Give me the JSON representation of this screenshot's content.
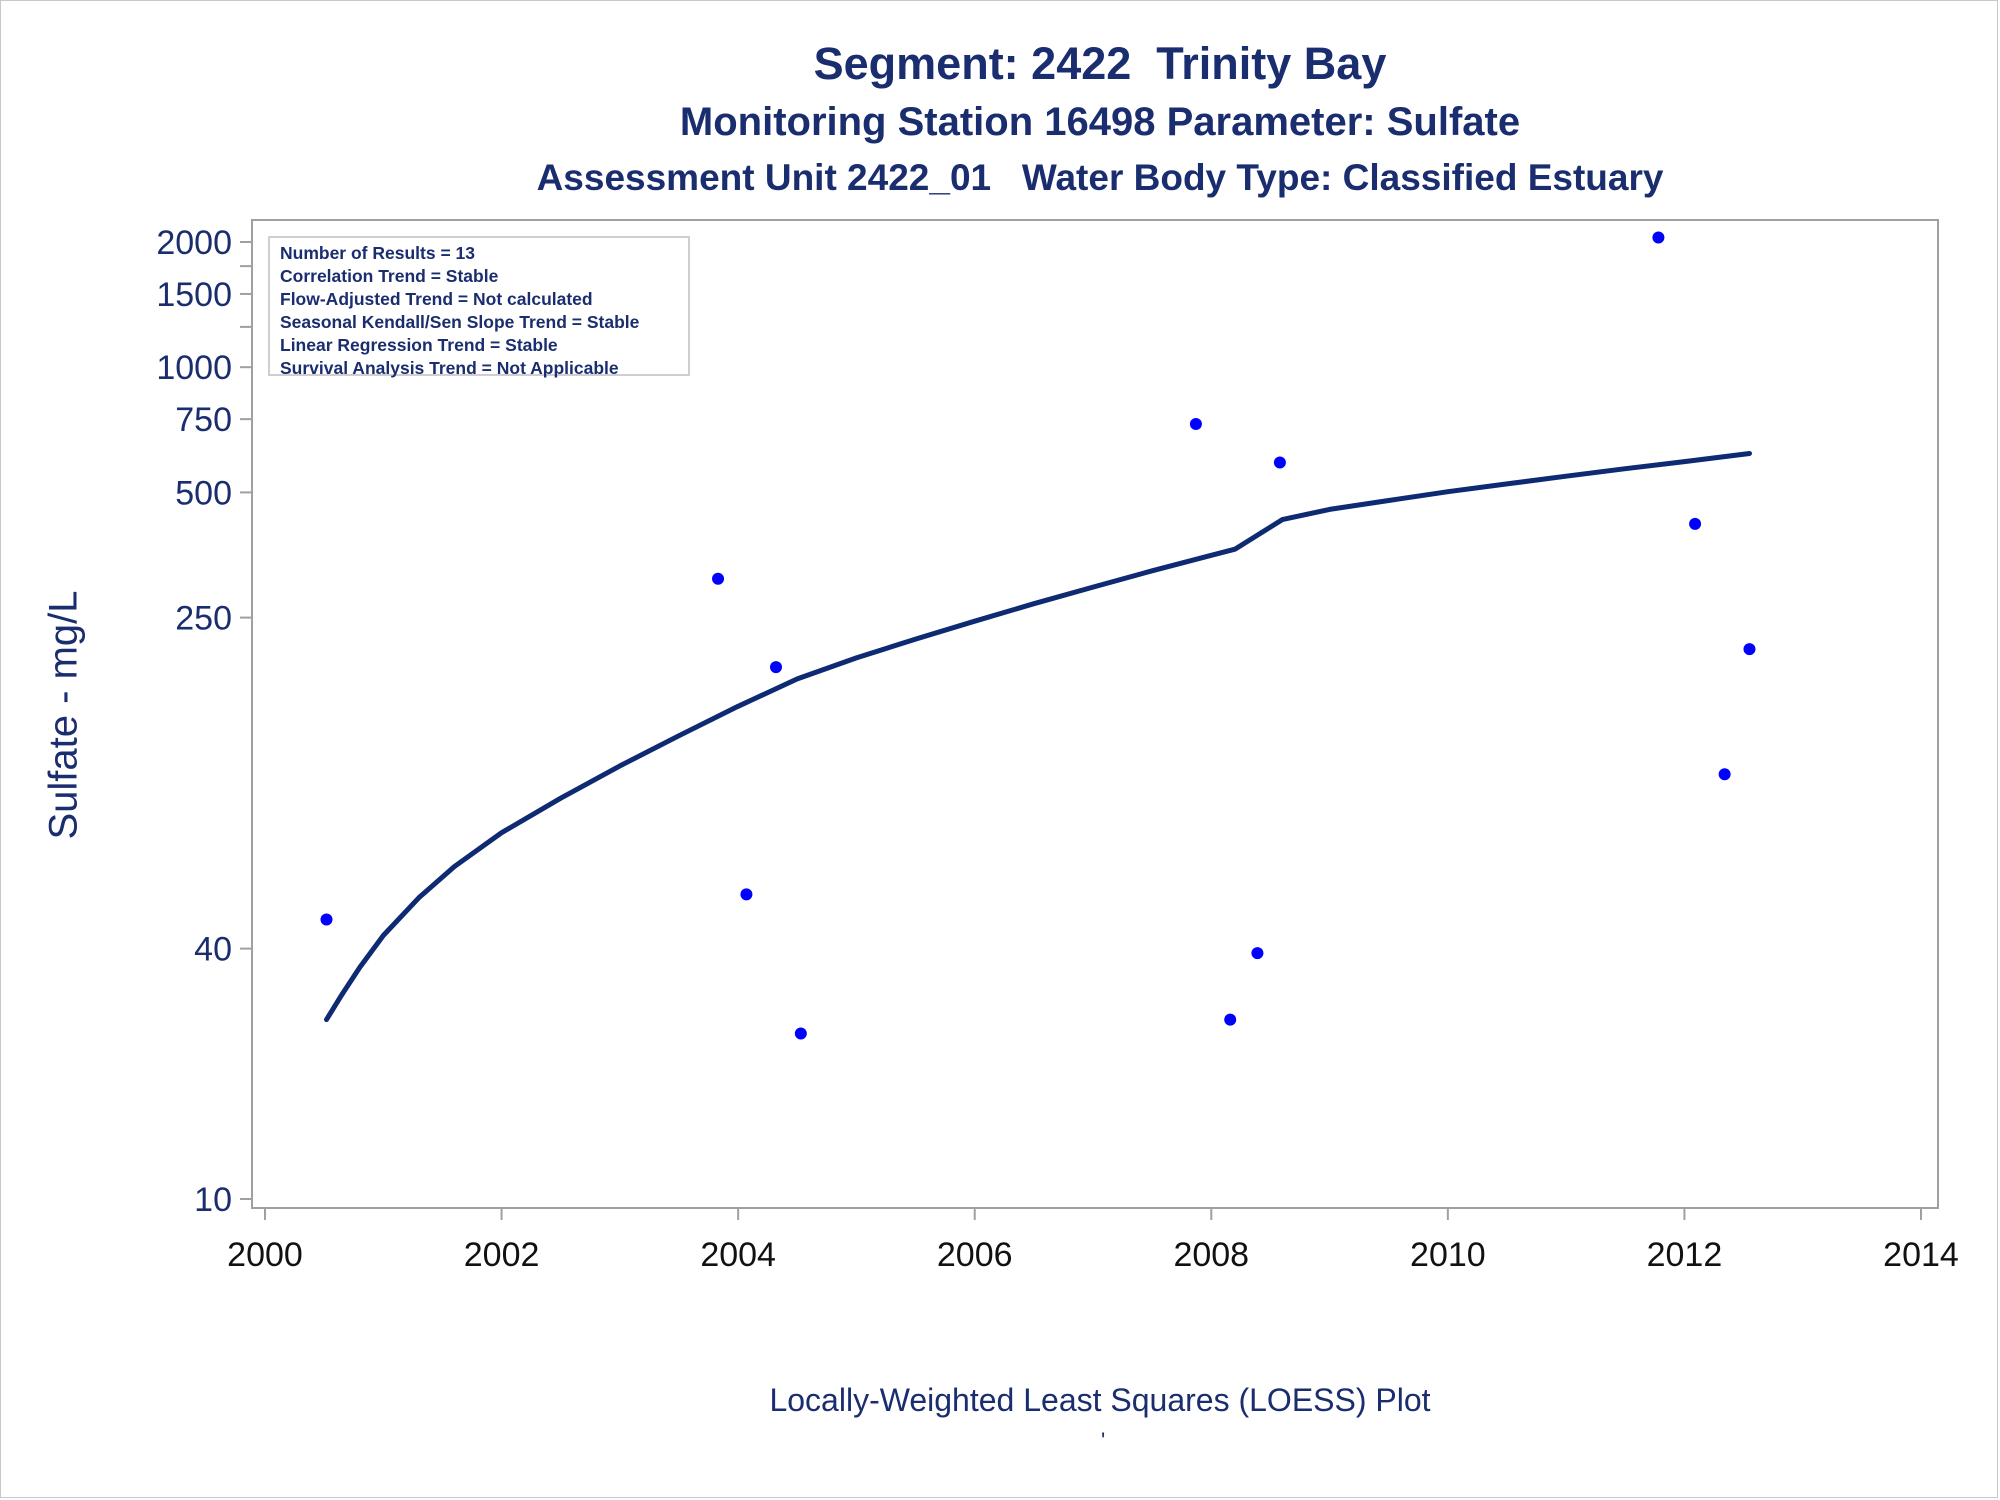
{
  "title_lines": [
    "Segment: 2422  Trinity Bay",
    "Monitoring Station 16498 Parameter: Sulfate",
    "Assessment Unit 2422_01   Water Body Type: Classified Estuary"
  ],
  "stats_box": [
    "Number of Results = 13",
    "Correlation Trend = Stable",
    "Flow-Adjusted Trend = Not calculated",
    "Seasonal Kendall/Sen Slope Trend = Stable",
    "Linear Regression Trend = Stable",
    "Survival Analysis Trend = Not Applicable"
  ],
  "footer": {
    "caption": "Locally-Weighted Least Squares (LOESS) Plot",
    "mark": "'"
  },
  "colors": {
    "text": "#1a2d6e",
    "points": "#0000ff",
    "curve": "#0d2a72",
    "axis": "#a0a0a0"
  },
  "chart_data": {
    "type": "scatter",
    "title": "Segment: 2422  Trinity Bay",
    "xlabel": "",
    "ylabel": "Sulfate - mg/L",
    "yscale": "log",
    "xlim": [
      2000,
      2014
    ],
    "ylim": [
      10,
      2200
    ],
    "x_ticks": [
      2000,
      2002,
      2004,
      2006,
      2008,
      2010,
      2012,
      2014
    ],
    "y_tick_labels": [
      10,
      40,
      250,
      500,
      750,
      1000,
      1500,
      2000
    ],
    "y_minor_ticks": [
      1250,
      1750
    ],
    "grid": false,
    "series": [
      {
        "kind": "points",
        "points": [
          {
            "x": 2000.52,
            "y": 47
          },
          {
            "x": 2003.83,
            "y": 310
          },
          {
            "x": 2004.07,
            "y": 54
          },
          {
            "x": 2004.32,
            "y": 190
          },
          {
            "x": 2004.53,
            "y": 25
          },
          {
            "x": 2007.87,
            "y": 730
          },
          {
            "x": 2008.16,
            "y": 27
          },
          {
            "x": 2008.39,
            "y": 39
          },
          {
            "x": 2008.58,
            "y": 590
          },
          {
            "x": 2011.78,
            "y": 2050
          },
          {
            "x": 2012.09,
            "y": 420
          },
          {
            "x": 2012.34,
            "y": 105
          },
          {
            "x": 2012.55,
            "y": 210
          }
        ]
      },
      {
        "kind": "loess-curve",
        "points": [
          {
            "x": 2000.52,
            "y": 27
          },
          {
            "x": 2000.65,
            "y": 31
          },
          {
            "x": 2000.8,
            "y": 36
          },
          {
            "x": 2001.0,
            "y": 43
          },
          {
            "x": 2001.3,
            "y": 53
          },
          {
            "x": 2001.6,
            "y": 63
          },
          {
            "x": 2002.0,
            "y": 76
          },
          {
            "x": 2002.5,
            "y": 92
          },
          {
            "x": 2003.0,
            "y": 110
          },
          {
            "x": 2003.5,
            "y": 130
          },
          {
            "x": 2004.0,
            "y": 153
          },
          {
            "x": 2004.5,
            "y": 178
          },
          {
            "x": 2005.0,
            "y": 200
          },
          {
            "x": 2005.5,
            "y": 222
          },
          {
            "x": 2006.0,
            "y": 245
          },
          {
            "x": 2006.5,
            "y": 270
          },
          {
            "x": 2007.0,
            "y": 296
          },
          {
            "x": 2007.5,
            "y": 324
          },
          {
            "x": 2008.0,
            "y": 353
          },
          {
            "x": 2008.2,
            "y": 365
          },
          {
            "x": 2008.6,
            "y": 430
          },
          {
            "x": 2009.0,
            "y": 455
          },
          {
            "x": 2009.5,
            "y": 478
          },
          {
            "x": 2010.0,
            "y": 502
          },
          {
            "x": 2010.5,
            "y": 524
          },
          {
            "x": 2011.0,
            "y": 547
          },
          {
            "x": 2011.5,
            "y": 570
          },
          {
            "x": 2012.0,
            "y": 593
          },
          {
            "x": 2012.55,
            "y": 620
          }
        ]
      }
    ]
  }
}
